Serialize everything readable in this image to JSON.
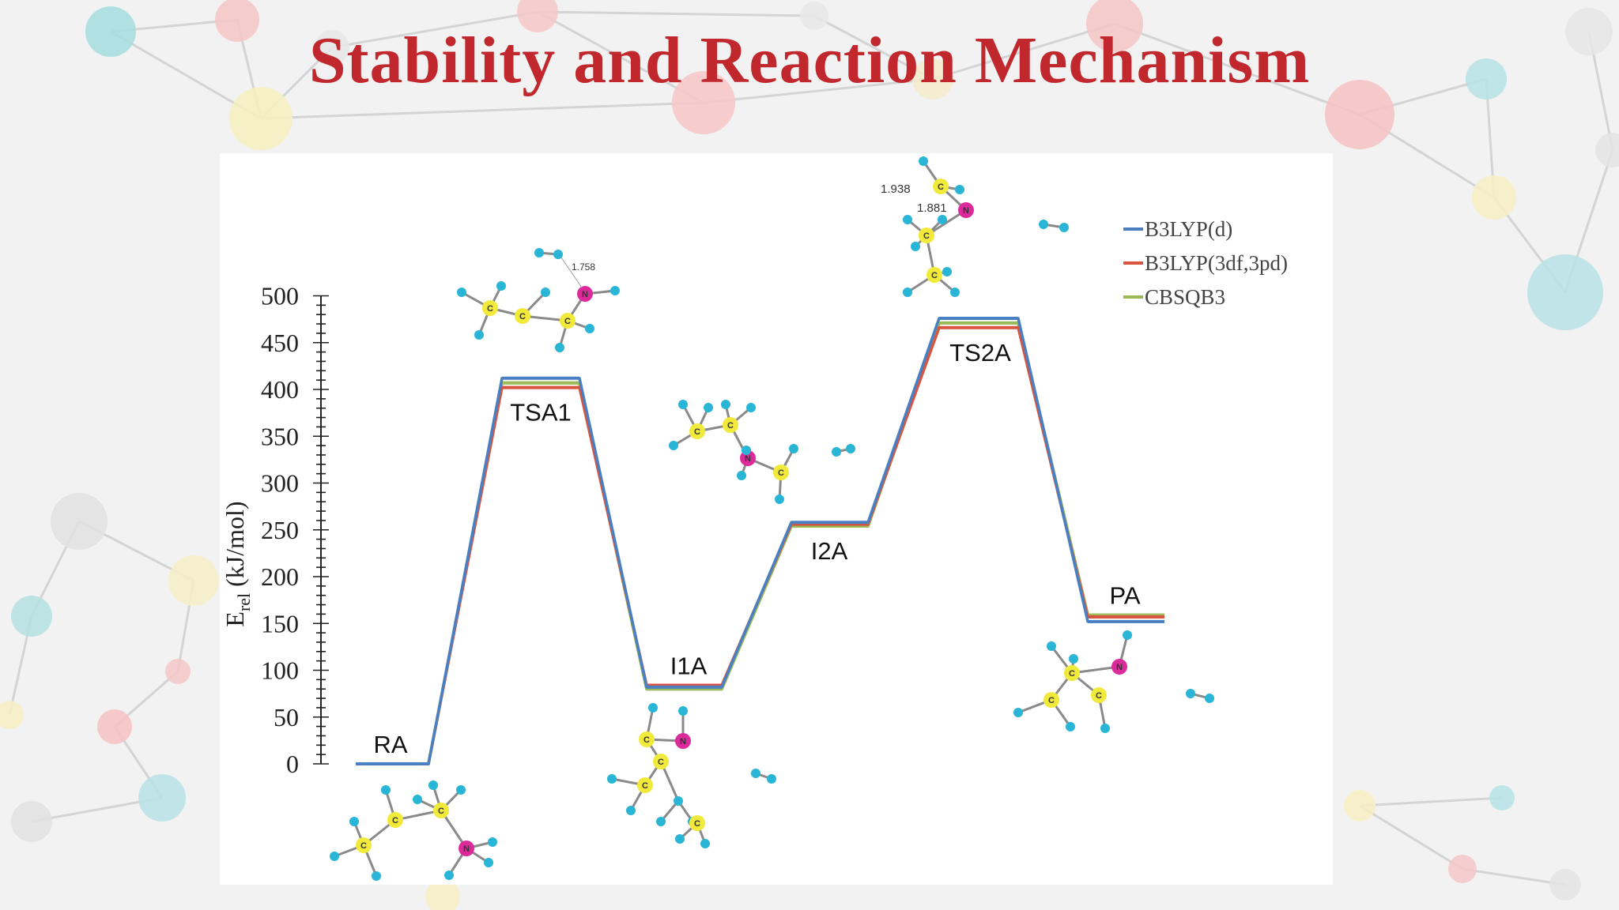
{
  "slide": {
    "title": "Stability and Reaction Mechanism",
    "title_color": "#c0282d"
  },
  "chart_data": {
    "type": "line",
    "title": "",
    "ylabel": "E_rel (kJ/mol)",
    "ylabel_main": "E",
    "ylabel_sub": "rel",
    "ylabel_rest": " (kJ/mol)",
    "ylim": [
      0,
      500
    ],
    "yticks": [
      0,
      50,
      100,
      150,
      200,
      250,
      300,
      350,
      400,
      450,
      500
    ],
    "categories": [
      "RA",
      "TSA1",
      "I1A",
      "I2A",
      "TS2A",
      "PA"
    ],
    "series": [
      {
        "name": "B3LYP(d)",
        "color": "#4a7fc1",
        "values": [
          0,
          412,
          82,
          258,
          476,
          152
        ]
      },
      {
        "name": "B3LYP(3df,3pd)",
        "color": "#d9543f",
        "values": [
          0,
          402,
          84,
          256,
          466,
          157
        ]
      },
      {
        "name": "CBSQB3",
        "color": "#9bbb59",
        "values": [
          0,
          407,
          80,
          254,
          471,
          159
        ]
      }
    ],
    "legend_position": "top-right",
    "grid": false,
    "annotations": [
      "1.758",
      "1.938",
      "1.881"
    ],
    "molecule_atom_labels": [
      "C",
      "N"
    ]
  }
}
